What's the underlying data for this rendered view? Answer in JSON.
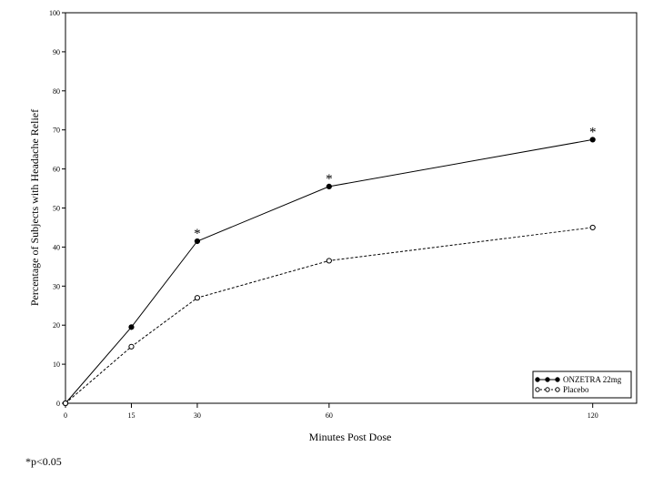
{
  "chart_data": {
    "type": "line",
    "title": "",
    "xlabel": "Minutes Post Dose",
    "ylabel": "Percentage of Subjects with Headache Relief",
    "x": [
      0,
      15,
      30,
      60,
      120
    ],
    "xticks": [
      "0",
      "15",
      "30",
      "60",
      "120"
    ],
    "yticks": [
      "0",
      "10",
      "20",
      "30",
      "40",
      "50",
      "60",
      "70",
      "80",
      "90",
      "100"
    ],
    "xlim": [
      0,
      130
    ],
    "ylim": [
      0,
      100
    ],
    "grid": false,
    "legend_position": "bottom-right",
    "series": [
      {
        "name": "ONZETRA 22mg",
        "values": [
          0,
          19.5,
          41.5,
          55.5,
          67.5
        ],
        "line_style": "solid",
        "marker": "filled-circle",
        "color": "#000000"
      },
      {
        "name": "Placebo",
        "values": [
          0,
          14.5,
          27,
          36.5,
          45
        ],
        "line_style": "dashed",
        "marker": "open-circle",
        "color": "#000000"
      }
    ],
    "annotations": [
      {
        "text": "*",
        "x": 30,
        "series": "ONZETRA 22mg"
      },
      {
        "text": "*",
        "x": 60,
        "series": "ONZETRA 22mg"
      },
      {
        "text": "*",
        "x": 120,
        "series": "ONZETRA 22mg"
      }
    ]
  },
  "footnote": "*p<0.05"
}
